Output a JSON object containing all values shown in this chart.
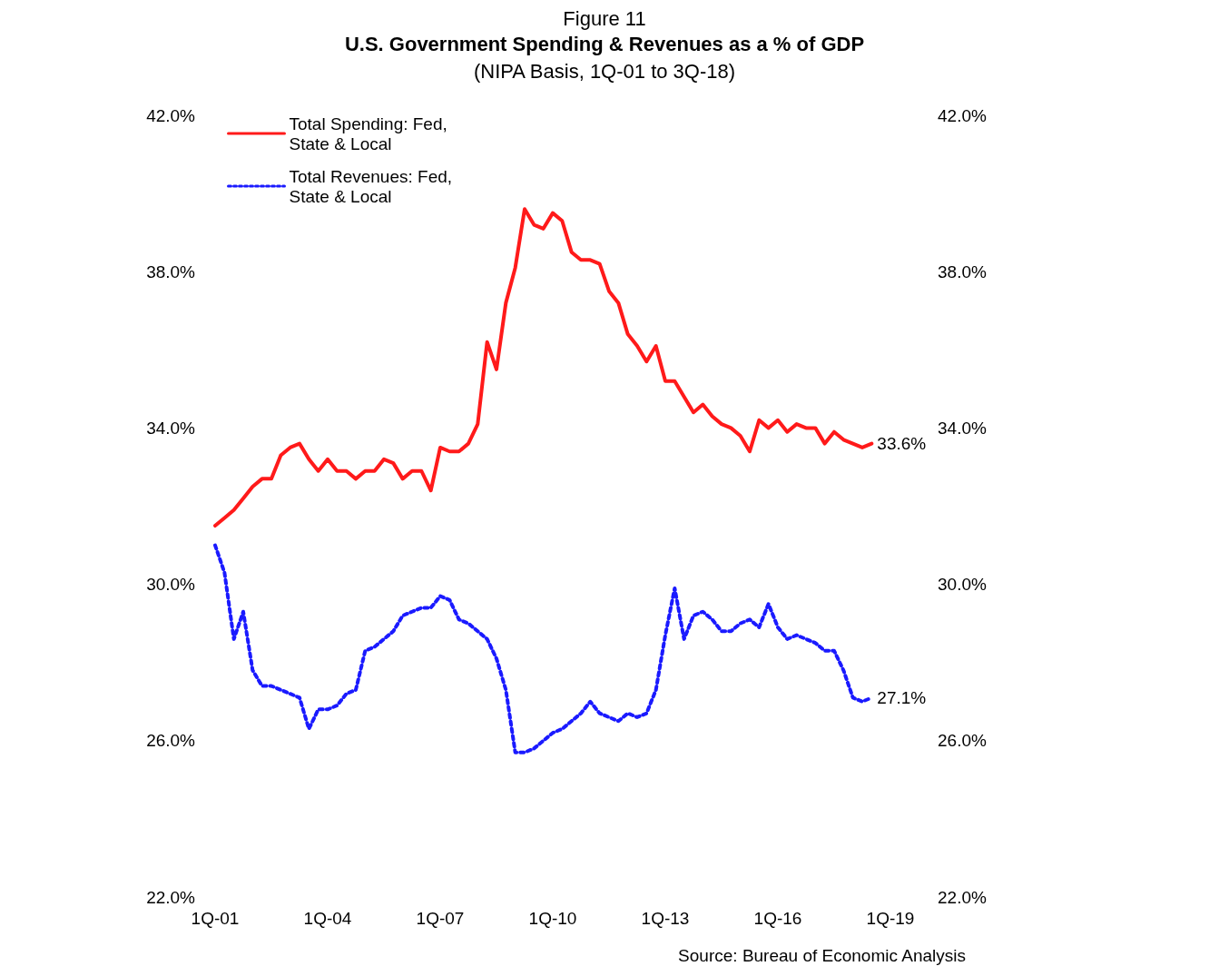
{
  "chart_data": {
    "type": "line",
    "title": "U.S. Government Spending & Revenues as a % of GDP",
    "subtitle": "(NIPA Basis, 1Q-01 to 3Q-18)",
    "annotations": [
      "Figure 11",
      "Source: Bureau of Economic Analysis"
    ],
    "categories": [
      "1Q-01",
      null,
      null,
      null,
      null,
      null,
      null,
      null,
      null,
      null,
      null,
      null,
      "1Q-04",
      null,
      null,
      null,
      null,
      null,
      null,
      null,
      null,
      null,
      null,
      null,
      "1Q-07",
      null,
      null,
      null,
      null,
      null,
      null,
      null,
      null,
      null,
      null,
      null,
      "1Q-10",
      null,
      null,
      null,
      null,
      null,
      null,
      null,
      null,
      null,
      null,
      null,
      "1Q-13",
      null,
      null,
      null,
      null,
      null,
      null,
      null,
      null,
      null,
      null,
      null,
      "1Q-16",
      null,
      null,
      null,
      null,
      null,
      null,
      null,
      null,
      null,
      null,
      null,
      "1Q-19"
    ],
    "series": [
      {
        "name": "Total Spending: Fed, State & Local",
        "color": "#ff1a1a",
        "line_style": "solid",
        "values": [
          31.5,
          31.7,
          31.9,
          32.2,
          32.5,
          32.7,
          32.7,
          33.3,
          33.5,
          33.6,
          33.2,
          32.9,
          33.2,
          32.9,
          32.9,
          32.7,
          32.9,
          32.9,
          33.2,
          33.1,
          32.7,
          32.9,
          32.9,
          32.4,
          33.5,
          33.4,
          33.4,
          33.6,
          34.1,
          36.2,
          35.5,
          37.2,
          38.1,
          39.6,
          39.2,
          39.1,
          39.5,
          39.3,
          38.5,
          38.3,
          38.3,
          38.2,
          37.5,
          37.2,
          36.4,
          36.1,
          35.7,
          36.1,
          35.2,
          35.2,
          34.8,
          34.4,
          34.6,
          34.3,
          34.1,
          34.0,
          33.8,
          33.4,
          34.2,
          34.0,
          34.2,
          33.9,
          34.1,
          34.0,
          34.0,
          33.6,
          33.9,
          33.7,
          33.6,
          33.5,
          33.6,
          null,
          null
        ],
        "value_labels": [
          null,
          null,
          null,
          null,
          null,
          null,
          null,
          null,
          null,
          null,
          null,
          null,
          null,
          null,
          null,
          null,
          null,
          null,
          null,
          null,
          null,
          null,
          null,
          null,
          null,
          null,
          null,
          null,
          null,
          null,
          null,
          null,
          null,
          null,
          null,
          null,
          null,
          null,
          null,
          null,
          null,
          null,
          null,
          null,
          null,
          null,
          null,
          null,
          null,
          null,
          null,
          null,
          null,
          null,
          null,
          null,
          null,
          null,
          null,
          null,
          null,
          null,
          null,
          null,
          null,
          null,
          null,
          null,
          null,
          null,
          "33.6%",
          null,
          null
        ]
      },
      {
        "name": "Total Revenues: Fed, State & Local",
        "color": "#1a1aff",
        "line_style": "dotted",
        "values": [
          31.0,
          30.3,
          28.6,
          29.3,
          27.8,
          27.4,
          27.4,
          27.3,
          27.2,
          27.1,
          26.3,
          26.8,
          26.8,
          26.9,
          27.2,
          27.3,
          28.3,
          28.4,
          28.6,
          28.8,
          29.2,
          29.3,
          29.4,
          29.4,
          29.7,
          29.6,
          29.1,
          29.0,
          28.8,
          28.6,
          28.1,
          27.3,
          25.7,
          25.7,
          25.8,
          26.0,
          26.2,
          26.3,
          26.5,
          26.7,
          27.0,
          26.7,
          26.6,
          26.5,
          26.7,
          26.6,
          26.7,
          27.3,
          28.7,
          29.9,
          28.6,
          29.2,
          29.3,
          29.1,
          28.8,
          28.8,
          29.0,
          29.1,
          28.9,
          29.5,
          28.9,
          28.6,
          28.7,
          28.6,
          28.5,
          28.3,
          28.3,
          27.8,
          27.1,
          27.0,
          27.1,
          null,
          null
        ],
        "value_labels": [
          null,
          null,
          null,
          null,
          null,
          null,
          null,
          null,
          null,
          null,
          null,
          null,
          null,
          null,
          null,
          null,
          null,
          null,
          null,
          null,
          null,
          null,
          null,
          null,
          null,
          null,
          null,
          null,
          null,
          null,
          null,
          null,
          null,
          null,
          null,
          null,
          null,
          null,
          null,
          null,
          null,
          null,
          null,
          null,
          null,
          null,
          null,
          null,
          null,
          null,
          null,
          null,
          null,
          null,
          null,
          null,
          null,
          null,
          null,
          null,
          null,
          null,
          null,
          null,
          null,
          null,
          null,
          null,
          null,
          null,
          "27.1%",
          null,
          null
        ]
      }
    ],
    "ylim": [
      22,
      42
    ],
    "yticks": [
      {
        "value": 22,
        "label": "22.0%"
      },
      {
        "value": 26,
        "label": "26.0%"
      },
      {
        "value": 30,
        "label": "30.0%"
      },
      {
        "value": 34,
        "label": "34.0%"
      },
      {
        "value": 38,
        "label": "38.0%"
      },
      {
        "value": 42,
        "label": "42.0%"
      }
    ],
    "y2lim": [
      22,
      42
    ],
    "y2ticks": [
      {
        "value": 22,
        "label": "22.0%"
      },
      {
        "value": 26,
        "label": "26.0%"
      },
      {
        "value": 30,
        "label": "30.0%"
      },
      {
        "value": 34,
        "label": "34.0%"
      },
      {
        "value": 38,
        "label": "38.0%"
      },
      {
        "value": 42,
        "label": "42.0%"
      }
    ],
    "grid": false,
    "legend": "top left",
    "marker": "none"
  }
}
